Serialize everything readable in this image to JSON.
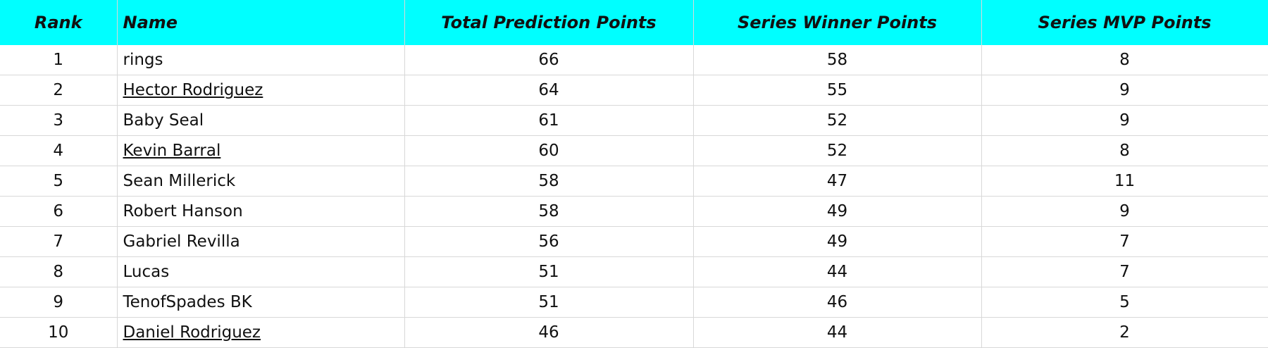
{
  "header_color": "#00FFFF",
  "columns": [
    "Rank",
    "Name",
    "Total Prediction Points",
    "Series Winner Points",
    "Series MVP Points"
  ],
  "rows": [
    {
      "rank": "1",
      "name": "rings",
      "linked": false,
      "total": "66",
      "winner": "58",
      "mvp": "8"
    },
    {
      "rank": "2",
      "name": "Hector Rodriguez",
      "linked": true,
      "total": "64",
      "winner": "55",
      "mvp": "9"
    },
    {
      "rank": "3",
      "name": "Baby Seal",
      "linked": false,
      "total": "61",
      "winner": "52",
      "mvp": "9"
    },
    {
      "rank": "4",
      "name": "Kevin Barral",
      "linked": true,
      "total": "60",
      "winner": "52",
      "mvp": "8"
    },
    {
      "rank": "5",
      "name": "Sean Millerick",
      "linked": false,
      "total": "58",
      "winner": "47",
      "mvp": "11"
    },
    {
      "rank": "6",
      "name": "Robert Hanson",
      "linked": false,
      "total": "58",
      "winner": "49",
      "mvp": "9"
    },
    {
      "rank": "7",
      "name": "Gabriel Revilla",
      "linked": false,
      "total": "56",
      "winner": "49",
      "mvp": "7"
    },
    {
      "rank": "8",
      "name": "Lucas",
      "linked": false,
      "total": "51",
      "winner": "44",
      "mvp": "7"
    },
    {
      "rank": "9",
      "name": "TenofSpades BK",
      "linked": false,
      "total": "51",
      "winner": "46",
      "mvp": "5"
    },
    {
      "rank": "10",
      "name": "Daniel Rodriguez",
      "linked": true,
      "total": "46",
      "winner": "44",
      "mvp": "2"
    }
  ]
}
